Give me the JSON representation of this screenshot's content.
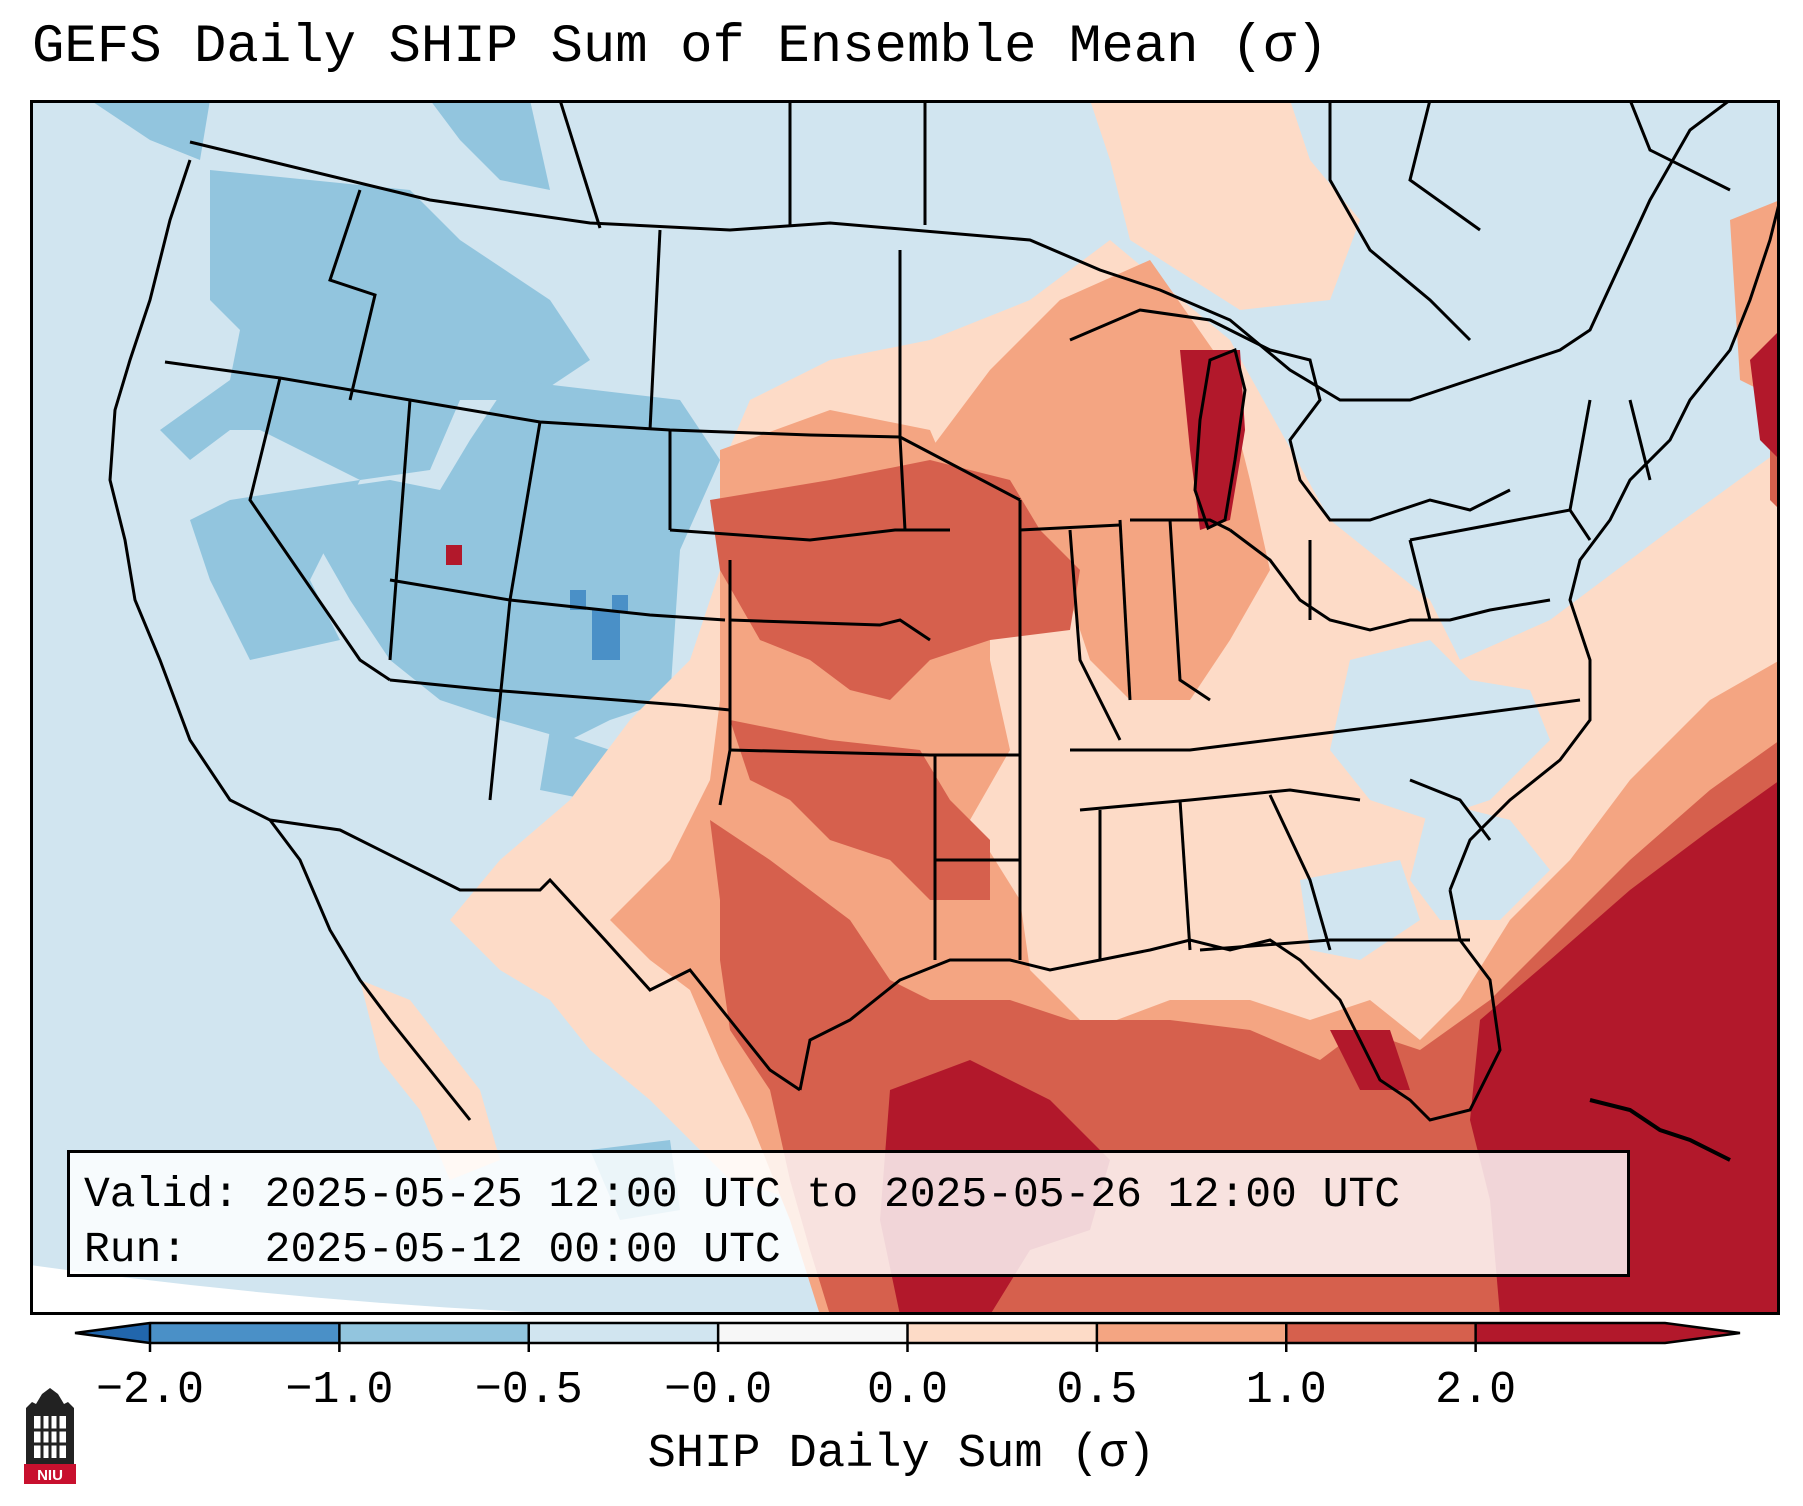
{
  "title": "GEFS Daily SHIP Sum of Ensemble Mean (σ)",
  "info": {
    "valid_label": "Valid:",
    "valid_value": "2025-05-25 12:00 UTC to 2025-05-26 12:00 UTC",
    "run_label": "Run:",
    "run_value": "2025-05-12 00:00 UTC"
  },
  "colorbar": {
    "label": "SHIP Daily Sum (σ)",
    "ticks": [
      "−2.0",
      "−1.0",
      "−0.5",
      "−0.0",
      "0.0",
      "0.5",
      "1.0",
      "2.0"
    ],
    "colors": [
      "#4a90c7",
      "#92c5de",
      "#d1e5f0",
      "#f7f7f7",
      "#fddbc7",
      "#f4a582",
      "#d6604d",
      "#b2182b"
    ],
    "extend_low_color": "#2166ac",
    "extend_high_color": "#b2182b"
  },
  "logo": {
    "text": "NIU",
    "icon": "university-logo-icon"
  },
  "map": {
    "region": "Contiguous United States",
    "ocean_color": "#d1e5f0",
    "border_color": "#000000"
  }
}
